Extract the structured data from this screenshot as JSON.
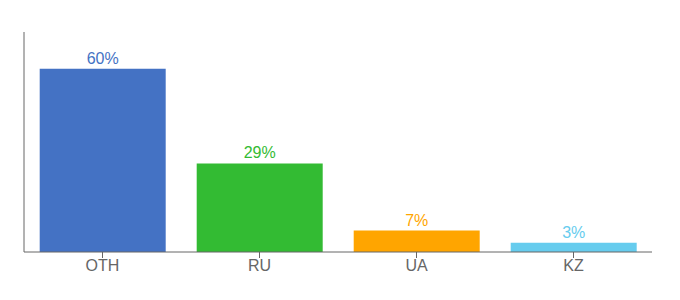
{
  "chart_data": {
    "type": "bar",
    "categories": [
      "OTH",
      "RU",
      "UA",
      "KZ"
    ],
    "values": [
      60,
      29,
      7,
      3
    ],
    "value_labels": [
      "60%",
      "29%",
      "7%",
      "3%"
    ],
    "colors": [
      "#4472C4",
      "#33BB33",
      "#FFA500",
      "#66CCEE"
    ],
    "ylim": [
      0,
      72
    ],
    "tick_labels": "x",
    "data_labels": true,
    "grid": false
  }
}
